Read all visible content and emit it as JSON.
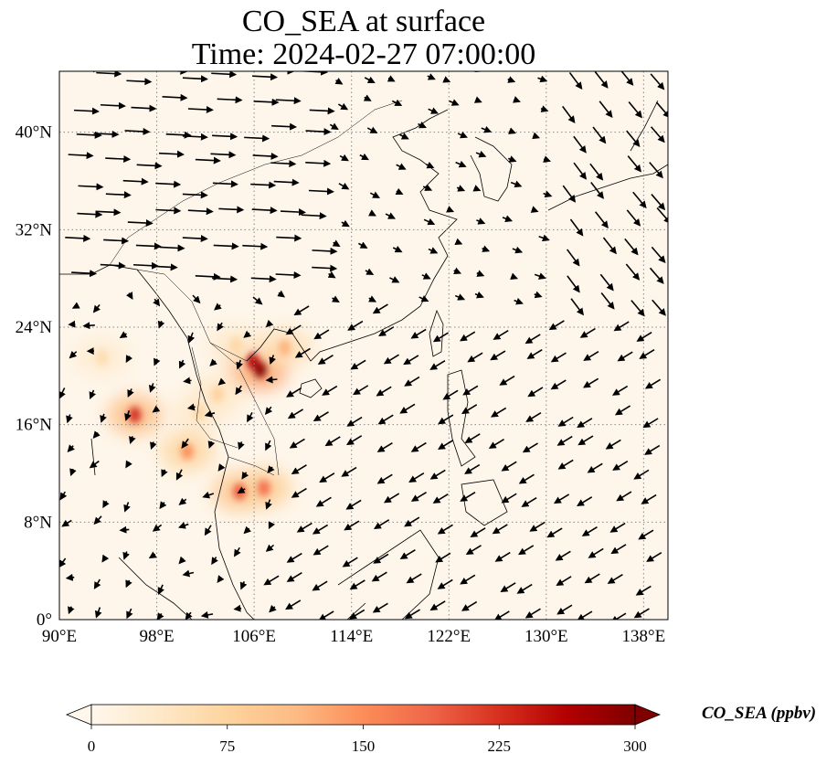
{
  "title": {
    "line1": "CO_SEA at surface",
    "line2": "Time: 2024-02-27 07:00:00"
  },
  "map": {
    "lon_range": [
      90,
      140
    ],
    "lat_range": [
      0,
      45
    ],
    "lon_ticks": [
      "90°E",
      "98°E",
      "106°E",
      "114°E",
      "122°E",
      "130°E",
      "138°E"
    ],
    "lat_ticks": [
      "0°",
      "8°N",
      "16°N",
      "24°N",
      "32°N",
      "40°N"
    ],
    "gridlines": true,
    "colormap": "OrRd"
  },
  "colorbar": {
    "label": "CO_SEA (ppbv)",
    "ticks": [
      "0",
      "75",
      "150",
      "225",
      "300"
    ],
    "range": [
      0,
      300
    ],
    "extend": "both",
    "colors": [
      "#fff7ec",
      "#fee8c8",
      "#fdd49e",
      "#fdbb84",
      "#fc8d59",
      "#ef6548",
      "#d7301f",
      "#b30000",
      "#7f0000"
    ]
  },
  "hotspots": [
    {
      "lon": 106.5,
      "lat": 20.5,
      "level": 300
    },
    {
      "lon": 105.9,
      "lat": 21.2,
      "level": 260
    },
    {
      "lon": 96.2,
      "lat": 16.8,
      "level": 230
    },
    {
      "lon": 104.8,
      "lat": 10.5,
      "level": 200
    },
    {
      "lon": 106.8,
      "lat": 10.8,
      "level": 180
    },
    {
      "lon": 100.5,
      "lat": 13.8,
      "level": 150
    },
    {
      "lon": 103.0,
      "lat": 18.5,
      "level": 80
    },
    {
      "lon": 101.5,
      "lat": 17.0,
      "level": 70
    },
    {
      "lon": 104.5,
      "lat": 22.5,
      "level": 70
    },
    {
      "lon": 108.5,
      "lat": 22.3,
      "level": 120
    },
    {
      "lon": 93.5,
      "lat": 21.5,
      "level": 60
    }
  ]
}
